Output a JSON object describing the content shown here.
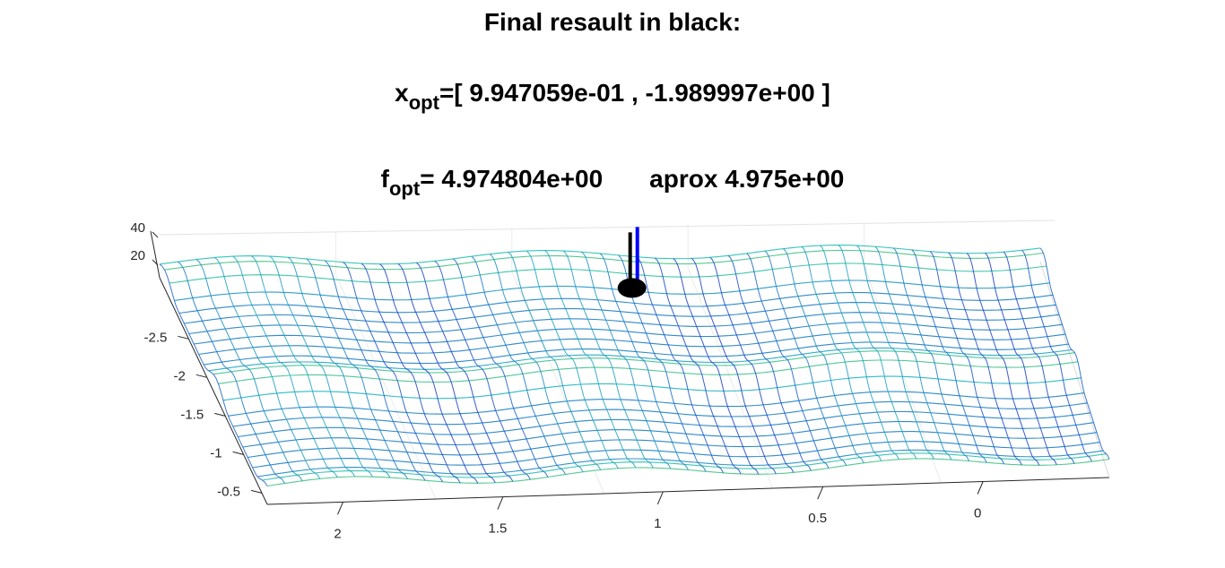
{
  "title": {
    "line1": "Final resault in black:",
    "xopt_symbol": "x",
    "xopt_sub": "opt",
    "xopt_value": "=[ 9.947059e-01 , -1.989997e+00 ]",
    "fopt_symbol": "f",
    "fopt_sub": "opt",
    "fopt_value": "= 4.974804e+00",
    "approx": "aprox 4.975e+00"
  },
  "chart_data": {
    "type": "surface",
    "title": "Final resault in black:",
    "x_ticks": [
      "2",
      "1.5",
      "1",
      "0.5",
      "0"
    ],
    "y_ticks": [
      "-2.5",
      "-2",
      "-1.5",
      "-1",
      "-0.5"
    ],
    "z_ticks": [
      "40",
      "20"
    ],
    "x_range": [
      -0.2,
      2.3
    ],
    "y_range": [
      -2.9,
      -0.3
    ],
    "grid": true,
    "mesh_style": "wireframe colored by height (blue to green)",
    "optimum": {
      "x": 0.9947059,
      "y": -1.989997,
      "f": 4.974804,
      "color": "#000000"
    },
    "marker_colors": [
      "#000000",
      "#0000ff"
    ]
  }
}
